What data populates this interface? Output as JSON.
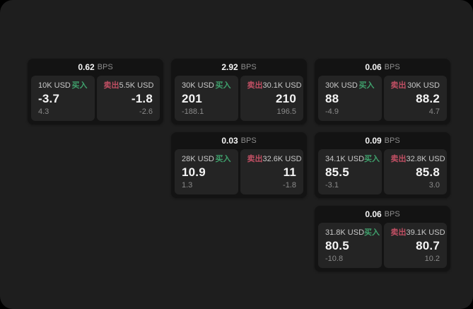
{
  "labels": {
    "buy": "买入",
    "sell": "卖出",
    "bps_unit": "BPS"
  },
  "colors": {
    "outer_background": "#000000",
    "panel_background": "#1e1e1e",
    "card_background": "#131313",
    "tile_background": "#242424",
    "buy_accent": "#3fa06c",
    "sell_accent": "#c04f63",
    "primary_text": "#f4f4f4",
    "muted_text": "#8a8a8a",
    "amount_text": "#c9c9c9"
  },
  "cards": [
    {
      "row": 1,
      "col": 1,
      "bps": "0.62",
      "buy": {
        "amount": "10K USD",
        "price": "-3.7",
        "delta": "4.3"
      },
      "sell": {
        "amount": "5.5K USD",
        "price": "-1.8",
        "delta": "-2.6"
      }
    },
    {
      "row": 1,
      "col": 2,
      "bps": "2.92",
      "buy": {
        "amount": "30K USD",
        "price": "201",
        "delta": "-188.1"
      },
      "sell": {
        "amount": "30.1K USD",
        "price": "210",
        "delta": "196.5"
      }
    },
    {
      "row": 1,
      "col": 3,
      "bps": "0.06",
      "buy": {
        "amount": "30K USD",
        "price": "88",
        "delta": "-4.9"
      },
      "sell": {
        "amount": "30K USD",
        "price": "88.2",
        "delta": "4.7"
      }
    },
    {
      "row": 2,
      "col": 2,
      "bps": "0.03",
      "buy": {
        "amount": "28K USD",
        "price": "10.9",
        "delta": "1.3"
      },
      "sell": {
        "amount": "32.6K USD",
        "price": "11",
        "delta": "-1.8"
      }
    },
    {
      "row": 2,
      "col": 3,
      "bps": "0.09",
      "buy": {
        "amount": "34.1K USD",
        "price": "85.5",
        "delta": "-3.1"
      },
      "sell": {
        "amount": "32.8K USD",
        "price": "85.8",
        "delta": "3.0"
      }
    },
    {
      "row": 3,
      "col": 3,
      "bps": "0.06",
      "buy": {
        "amount": "31.8K USD",
        "price": "80.5",
        "delta": "-10.8"
      },
      "sell": {
        "amount": "39.1K USD",
        "price": "80.7",
        "delta": "10.2"
      }
    }
  ]
}
